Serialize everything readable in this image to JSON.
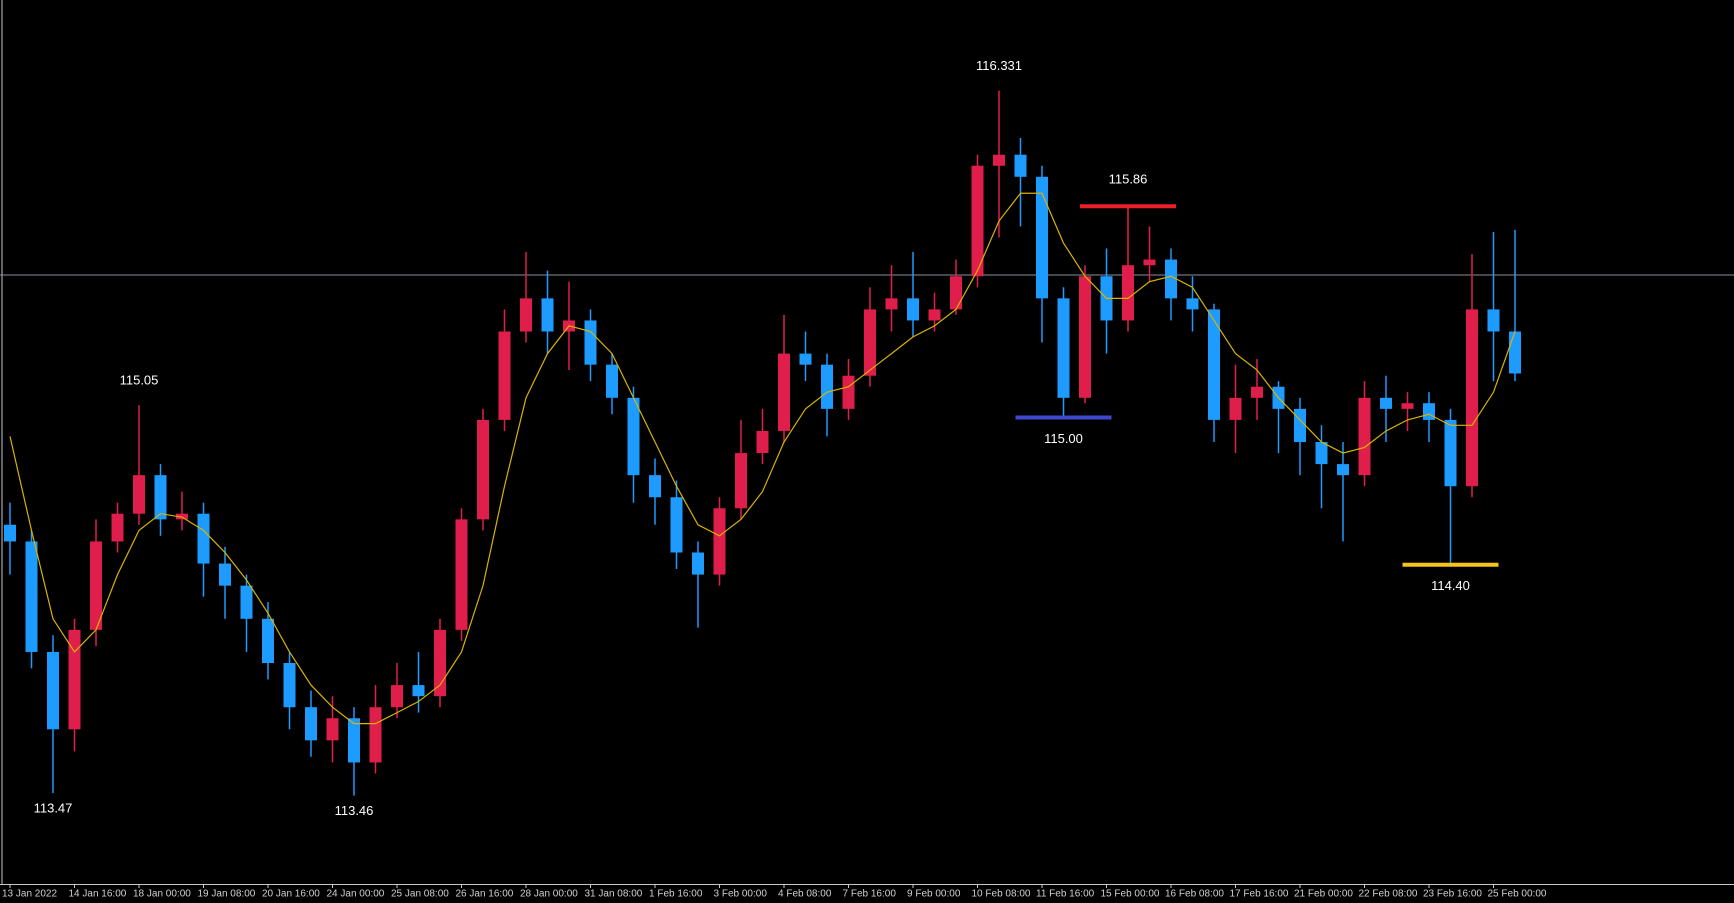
{
  "chart_data": {
    "type": "candlestick",
    "categories": [
      "13 Jan 2022",
      null,
      null,
      "14 Jan 16:00",
      null,
      null,
      "18 Jan 00:00",
      null,
      null,
      "19 Jan 08:00",
      null,
      null,
      "20 Jan 16:00",
      null,
      null,
      "24 Jan 00:00",
      null,
      null,
      "25 Jan 08:00",
      null,
      null,
      "26 Jan 16:00",
      null,
      null,
      "28 Jan 00:00",
      null,
      null,
      "31 Jan 08:00",
      null,
      null,
      "1 Feb 16:00",
      null,
      null,
      "3 Feb 00:00",
      null,
      null,
      "4 Feb 08:00",
      null,
      null,
      "7 Feb 16:00",
      null,
      null,
      "9 Feb 00:00",
      null,
      null,
      "10 Feb 08:00",
      null,
      null,
      "11 Feb 16:00",
      null,
      null,
      "15 Feb 00:00",
      null,
      null,
      "16 Feb 08:00",
      null,
      null,
      "17 Feb 16:00",
      null,
      null,
      "21 Feb 00:00",
      null,
      null,
      "22 Feb 08:00",
      null,
      null,
      "23 Feb 16:00",
      null,
      null,
      "25 Feb 00:00",
      null
    ],
    "open": [
      114.563,
      114.495,
      114.045,
      113.73,
      114.135,
      114.495,
      114.608,
      114.765,
      114.585,
      114.608,
      114.405,
      114.315,
      114.18,
      114.0,
      113.82,
      113.685,
      113.775,
      113.595,
      113.82,
      113.91,
      113.865,
      114.135,
      114.585,
      114.99,
      115.35,
      115.485,
      115.35,
      115.395,
      115.215,
      115.08,
      114.765,
      114.675,
      114.45,
      114.36,
      114.63,
      114.855,
      114.945,
      115.26,
      115.215,
      115.035,
      115.17,
      115.44,
      115.485,
      115.395,
      115.44,
      115.575,
      116.025,
      116.07,
      115.98,
      115.485,
      115.08,
      115.575,
      115.395,
      115.62,
      115.643,
      115.485,
      115.44,
      114.99,
      115.08,
      115.125,
      115.035,
      114.9,
      114.81,
      114.765,
      115.08,
      115.035,
      115.058,
      114.99,
      114.72,
      115.44,
      115.35
    ],
    "high": [
      114.653,
      114.54,
      114.113,
      114.18,
      114.585,
      114.653,
      115.05,
      114.81,
      114.698,
      114.653,
      114.473,
      114.36,
      114.248,
      114.045,
      113.888,
      113.865,
      113.82,
      113.91,
      114.0,
      114.045,
      114.18,
      114.63,
      115.035,
      115.44,
      115.674,
      115.598,
      115.553,
      115.44,
      115.26,
      115.125,
      114.833,
      114.743,
      114.495,
      114.675,
      114.99,
      115.035,
      115.418,
      115.35,
      115.26,
      115.238,
      115.53,
      115.62,
      115.674,
      115.508,
      115.643,
      116.07,
      116.331,
      116.138,
      116.025,
      115.53,
      115.62,
      115.688,
      115.86,
      115.778,
      115.688,
      115.575,
      115.463,
      115.215,
      115.238,
      115.148,
      115.08,
      114.968,
      114.9,
      115.148,
      115.17,
      115.103,
      115.103,
      115.035,
      115.665,
      115.755,
      115.764
    ],
    "low": [
      114.36,
      113.978,
      113.47,
      113.64,
      114.068,
      114.45,
      114.563,
      114.518,
      114.54,
      114.27,
      114.18,
      114.045,
      113.933,
      113.73,
      113.618,
      113.595,
      113.46,
      113.55,
      113.775,
      113.798,
      113.82,
      114.09,
      114.54,
      114.945,
      115.305,
      115.26,
      115.193,
      115.148,
      115.013,
      114.653,
      114.563,
      114.383,
      114.144,
      114.315,
      114.585,
      114.81,
      114.9,
      115.148,
      114.923,
      114.99,
      115.125,
      115.35,
      115.328,
      115.35,
      115.418,
      115.53,
      115.733,
      115.778,
      115.305,
      115,
      115.058,
      115.26,
      115.35,
      115.553,
      115.395,
      115.35,
      114.9,
      114.855,
      114.99,
      114.855,
      114.765,
      114.63,
      114.495,
      114.72,
      114.9,
      114.945,
      114.9,
      114.4,
      114.675,
      115.148,
      115.148
    ],
    "close": [
      114.495,
      114.045,
      113.73,
      114.135,
      114.495,
      114.608,
      114.765,
      114.585,
      114.608,
      114.405,
      114.315,
      114.18,
      114.0,
      113.82,
      113.685,
      113.775,
      113.595,
      113.82,
      113.91,
      113.865,
      114.135,
      114.585,
      114.99,
      115.35,
      115.485,
      115.35,
      115.395,
      115.215,
      115.08,
      114.765,
      114.675,
      114.45,
      114.36,
      114.63,
      114.855,
      114.945,
      115.26,
      115.215,
      115.035,
      115.17,
      115.44,
      115.485,
      115.395,
      115.44,
      115.575,
      116.025,
      116.07,
      115.98,
      115.485,
      115.08,
      115.575,
      115.395,
      115.62,
      115.643,
      115.485,
      115.44,
      114.99,
      115.08,
      115.125,
      115.035,
      114.9,
      114.81,
      114.765,
      115.08,
      115.035,
      115.058,
      114.99,
      114.72,
      115.44,
      115.35,
      115.179
    ],
    "up_color": "#e01e4c",
    "down_color": "#1e9bff",
    "ma": {
      "color": "#d9b300",
      "values": [
        114.923,
        114.54,
        114.18,
        114.045,
        114.135,
        114.36,
        114.54,
        114.608,
        114.594,
        114.54,
        114.45,
        114.338,
        114.203,
        114.045,
        113.91,
        113.82,
        113.753,
        113.753,
        113.798,
        113.843,
        113.91,
        114.045,
        114.315,
        114.72,
        115.08,
        115.26,
        115.373,
        115.35,
        115.26,
        115.08,
        114.9,
        114.72,
        114.563,
        114.518,
        114.585,
        114.698,
        114.9,
        115.035,
        115.103,
        115.125,
        115.193,
        115.26,
        115.328,
        115.373,
        115.44,
        115.598,
        115.8,
        115.913,
        115.913,
        115.71,
        115.575,
        115.485,
        115.485,
        115.553,
        115.575,
        115.53,
        115.395,
        115.26,
        115.193,
        115.08,
        114.99,
        114.9,
        114.855,
        114.878,
        114.945,
        114.99,
        115.013,
        114.968,
        114.968,
        115.103,
        115.35
      ]
    },
    "price_line": {
      "value": 115.58,
      "color": "#8a8f99"
    },
    "ylim": [
      113.1,
      116.7
    ],
    "extremes": [
      {
        "value": 116.331,
        "label": "116.331",
        "at": "high"
      },
      {
        "value": 115.05,
        "label": "115.05",
        "at": "high"
      },
      {
        "value": 113.47,
        "label": "113.47",
        "at": "low"
      },
      {
        "value": 113.46,
        "label": "113.46",
        "at": "low"
      }
    ],
    "levels": [
      {
        "value": 115.86,
        "label": "115.86",
        "at": "high",
        "color": "#e8202a"
      },
      {
        "value": 115,
        "label": "115.00",
        "at": "low",
        "color": "#3f48cc"
      },
      {
        "value": 114.4,
        "label": "114.40",
        "at": "low",
        "color": "#f5c518"
      }
    ]
  }
}
